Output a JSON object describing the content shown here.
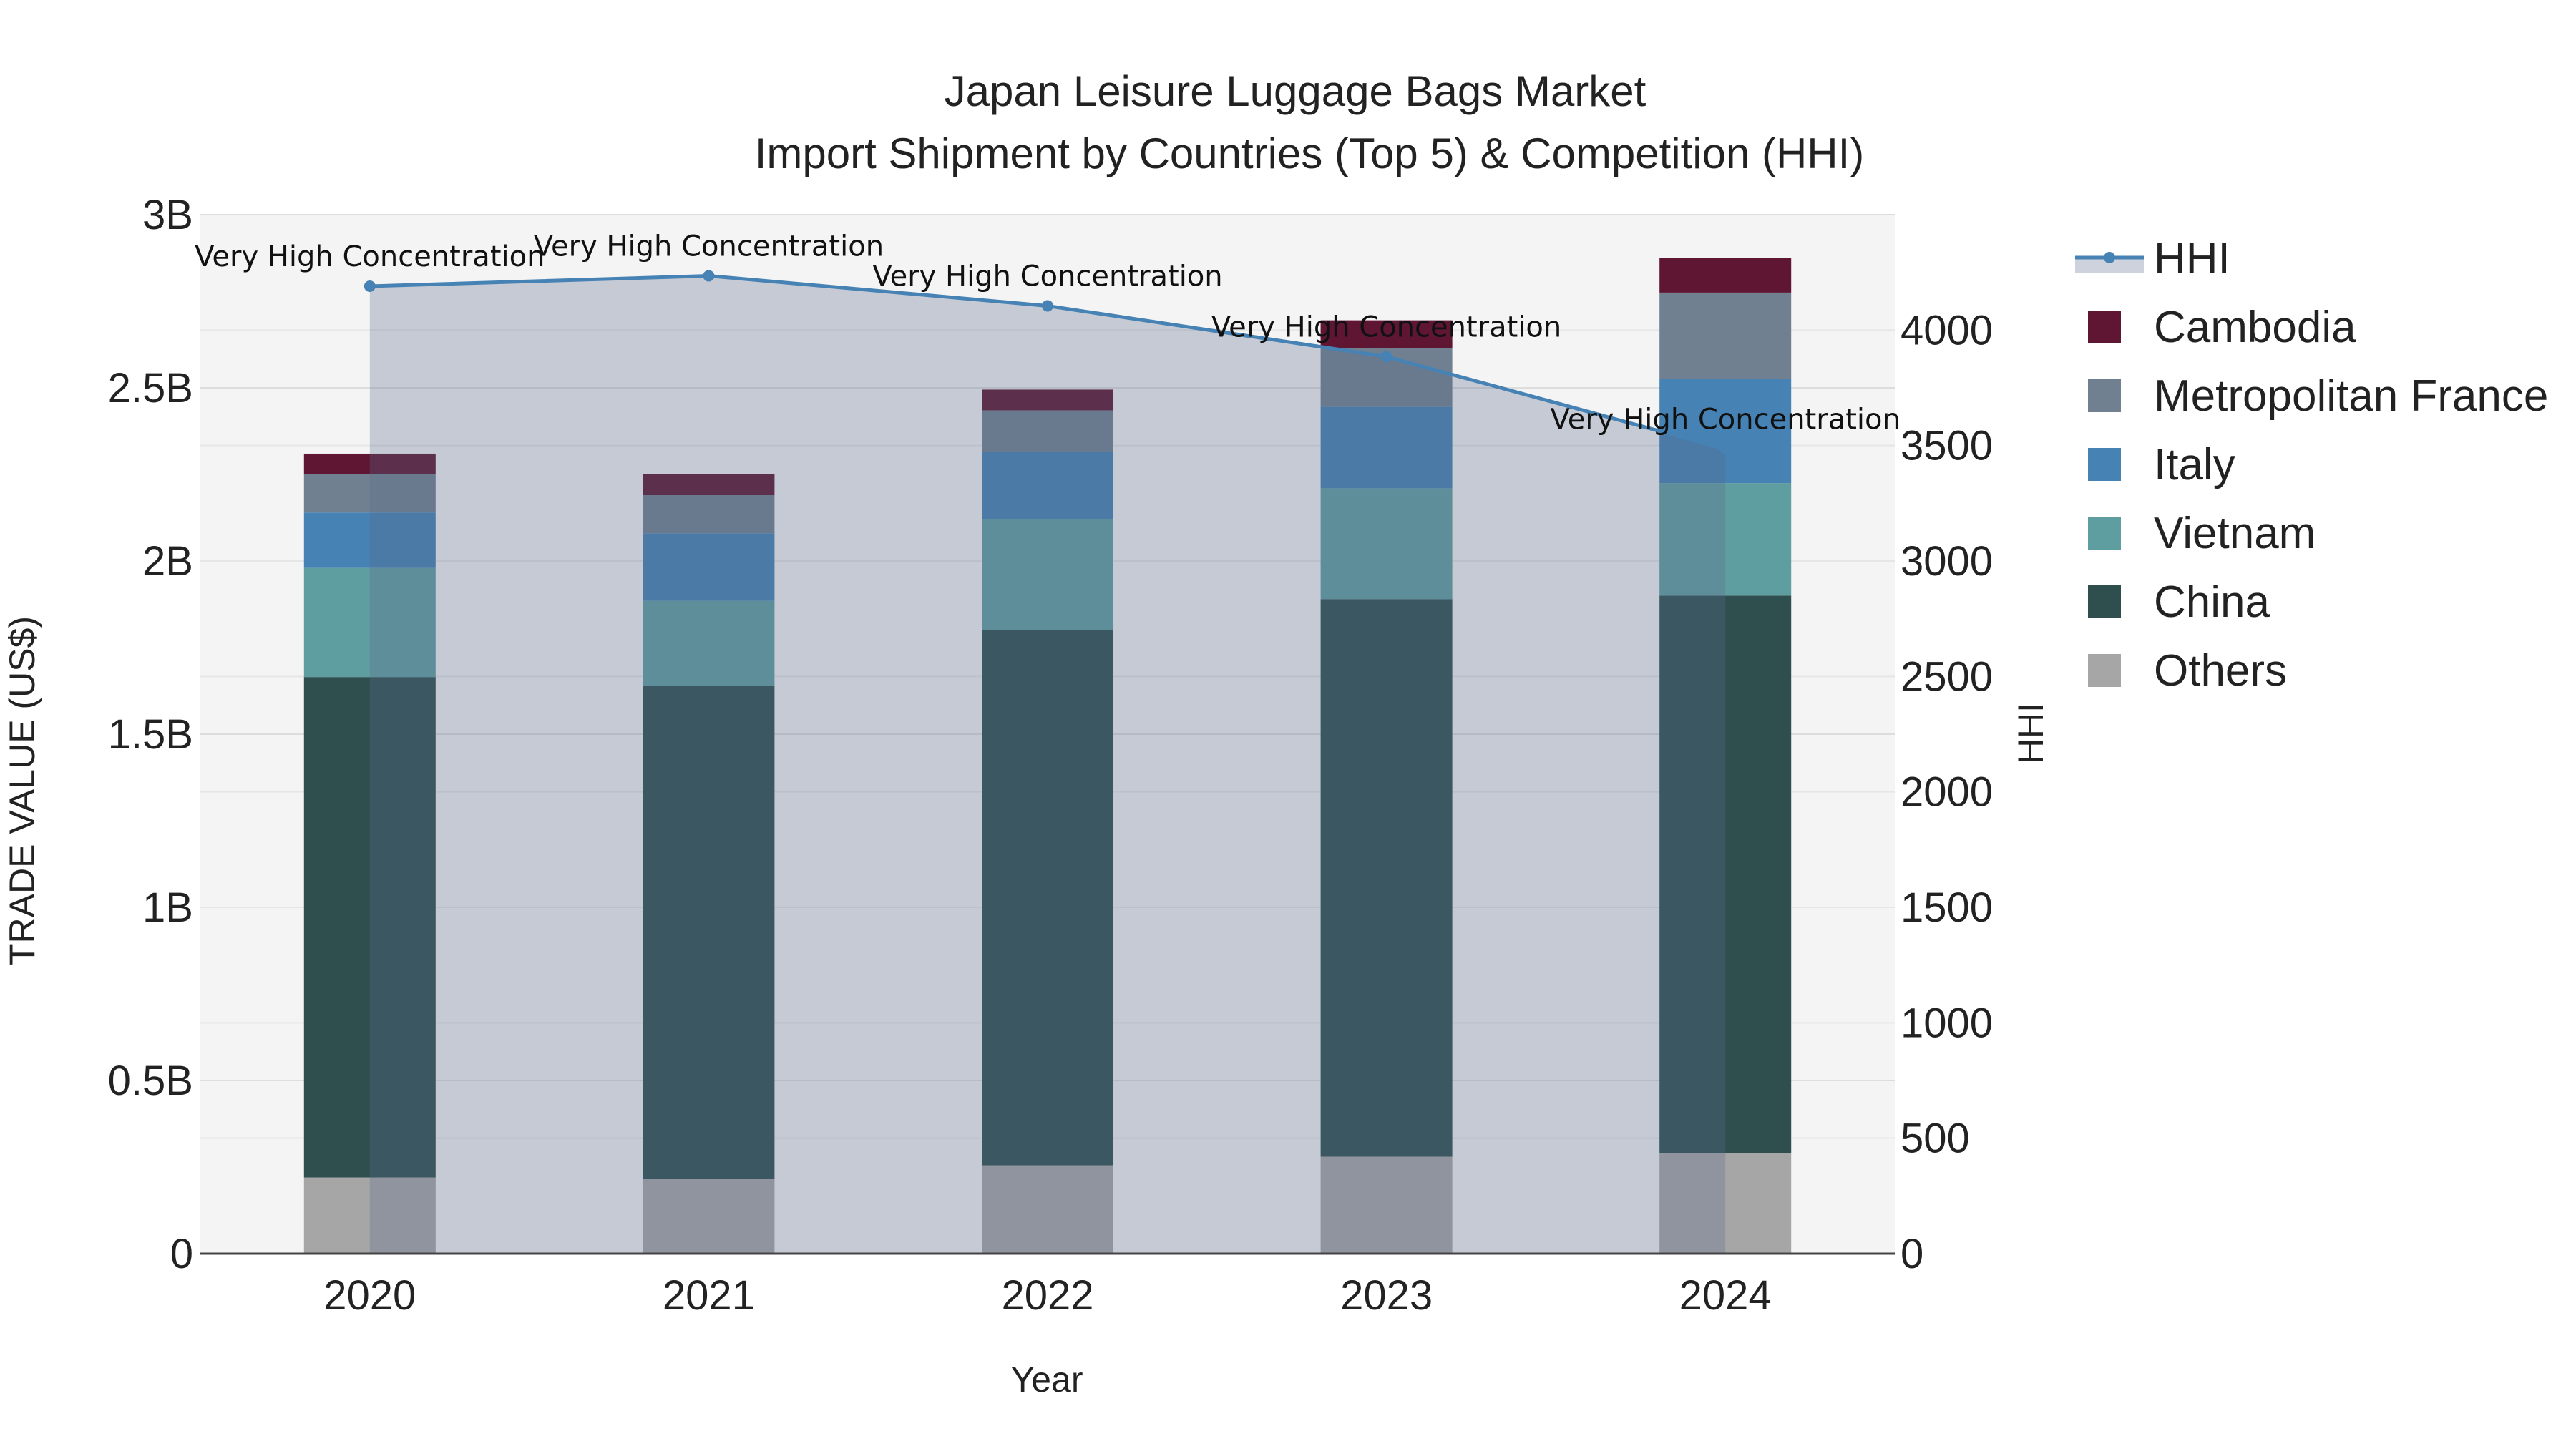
{
  "chart_data": {
    "type": "bar",
    "title": "Japan Leisure Luggage Bags Market",
    "subtitle": "Import Shipment by Countries (Top 5) & Competition (HHI)",
    "xlabel": "Year",
    "ylabel": "TRADE VALUE (US$)",
    "y2label": "HHI",
    "categories": [
      "2020",
      "2021",
      "2022",
      "2023",
      "2024"
    ],
    "ylim": [
      0,
      3000000000
    ],
    "y2lim": [
      0,
      4500
    ],
    "yticks": [
      {
        "value": 0,
        "label": "0"
      },
      {
        "value": 500000000,
        "label": "0.5B"
      },
      {
        "value": 1000000000,
        "label": "1B"
      },
      {
        "value": 1500000000,
        "label": "1.5B"
      },
      {
        "value": 2000000000,
        "label": "2B"
      },
      {
        "value": 2500000000,
        "label": "2.5B"
      },
      {
        "value": 3000000000,
        "label": "3B"
      }
    ],
    "y2ticks": [
      {
        "value": 0,
        "label": "0"
      },
      {
        "value": 500,
        "label": "500"
      },
      {
        "value": 1000,
        "label": "1000"
      },
      {
        "value": 1500,
        "label": "1500"
      },
      {
        "value": 2000,
        "label": "2000"
      },
      {
        "value": 2500,
        "label": "2500"
      },
      {
        "value": 3000,
        "label": "3000"
      },
      {
        "value": 3500,
        "label": "3500"
      },
      {
        "value": 4000,
        "label": "4000"
      }
    ],
    "series": [
      {
        "name": "Others",
        "color": "#a6a6a6",
        "values": [
          220000000,
          215000000,
          255000000,
          280000000,
          290000000
        ]
      },
      {
        "name": "China",
        "color": "#2f4f4f",
        "values": [
          1445000000,
          1425000000,
          1545000000,
          1610000000,
          1610000000
        ]
      },
      {
        "name": "Vietnam",
        "color": "#5f9ea0",
        "values": [
          315000000,
          245000000,
          320000000,
          320000000,
          325000000
        ]
      },
      {
        "name": "Italy",
        "color": "#4682b4",
        "values": [
          160000000,
          195000000,
          195000000,
          235000000,
          300000000
        ]
      },
      {
        "name": "Metropolitan France",
        "color": "#708090",
        "values": [
          110000000,
          110000000,
          120000000,
          170000000,
          250000000
        ]
      },
      {
        "name": "Cambodia",
        "color": "#5e1632",
        "values": [
          60000000,
          60000000,
          60000000,
          80000000,
          100000000
        ]
      }
    ],
    "hhi": {
      "name": "HHI",
      "color": "#4682b4",
      "fill_color": "rgba(90,105,140,0.30)",
      "values": [
        4190,
        4235,
        4105,
        3885,
        3485
      ],
      "annotations": [
        "Very High Concentration",
        "Very High Concentration",
        "Very High Concentration",
        "Very High Concentration",
        "Very High Concentration"
      ]
    },
    "legend": [
      "HHI",
      "Cambodia",
      "Metropolitan France",
      "Italy",
      "Vietnam",
      "China",
      "Others"
    ],
    "legend_position": "right",
    "grid": true
  }
}
